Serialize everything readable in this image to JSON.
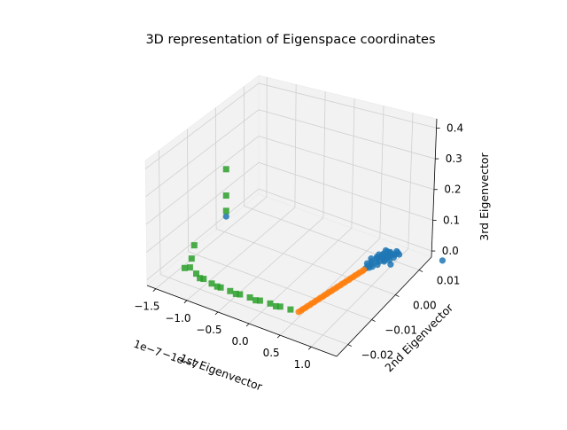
{
  "chart_data": {
    "type": "scatter",
    "title": "3D representation of Eigenspace coordinates",
    "xlabel": "1st Eigenvector",
    "ylabel": "2nd Eigenvector",
    "zlabel": "3rd Eigenvector",
    "x_offset_text": "1e−7",
    "x_overlap_text": "−1e−7",
    "x_ticks": [
      "−1.5",
      "−1.0",
      "−0.5",
      "0.0",
      "0.5",
      "1.0"
    ],
    "y_ticks": [
      "−0.02",
      "−0.01",
      "0.00",
      "0.01"
    ],
    "z_ticks": [
      "0.0",
      "0.1",
      "0.2",
      "0.3",
      "0.4"
    ],
    "xlim": [
      -1.75,
      1.25
    ],
    "ylim": [
      -0.025,
      0.017
    ],
    "zlim": [
      -0.02,
      0.43
    ],
    "grid": true,
    "colors": {
      "series1": "#1f77b4",
      "series2": "#ff7f0e",
      "series3": "#2ca02c",
      "pane": "#f2f2f2",
      "grid": "#d0d0d0"
    },
    "series": [
      {
        "color": "#1f77b4",
        "marker": "circle",
        "points": [
          [
            0.58,
            0.0135,
            0.0
          ],
          [
            0.45,
            0.0125,
            0.0
          ],
          [
            0.52,
            0.0125,
            0.0
          ],
          [
            0.62,
            0.013,
            0.002
          ],
          [
            0.5,
            0.012,
            0.004
          ],
          [
            0.57,
            0.0115,
            0.0
          ],
          [
            0.47,
            0.0112,
            0.0
          ],
          [
            0.54,
            0.0108,
            0.0
          ],
          [
            0.43,
            0.0104,
            0.0
          ],
          [
            0.6,
            0.0118,
            0.003
          ],
          [
            0.49,
            0.0097,
            0.0
          ],
          [
            0.56,
            0.0092,
            0.0
          ],
          [
            0.46,
            0.0088,
            0.0
          ],
          [
            0.53,
            0.0084,
            0.0
          ],
          [
            0.4,
            0.0082,
            0.0
          ],
          [
            0.59,
            0.01,
            0.005
          ],
          [
            0.51,
            0.0078,
            0.0
          ],
          [
            0.44,
            0.0074,
            0.0
          ],
          [
            0.55,
            0.007,
            0.0
          ],
          [
            0.48,
            0.0066,
            0.0
          ],
          [
            0.42,
            0.0062,
            0.0
          ],
          [
            0.52,
            0.0058,
            0.0
          ],
          [
            0.46,
            0.0055,
            0.0
          ],
          [
            0.5,
            0.0051,
            0.0
          ],
          [
            0.47,
            0.0045,
            0.0
          ],
          [
            0.61,
            0.0122,
            0.001
          ],
          [
            0.63,
            0.0112,
            0.0
          ],
          [
            0.57,
            0.0102,
            0.006
          ],
          [
            0.65,
            0.0128,
            0.0
          ],
          [
            0.53,
            0.0095,
            0.003
          ],
          [
            0.48,
            0.0105,
            0.002
          ],
          [
            0.58,
            0.0088,
            0.0
          ],
          [
            0.44,
            0.0094,
            0.0
          ],
          [
            0.62,
            0.0098,
            0.0
          ],
          [
            0.55,
            0.0118,
            0.004
          ],
          [
            1.2,
            0.016,
            0.0
          ],
          [
            0.8,
            0.006,
            0.03
          ],
          [
            -1.55,
            0.0,
            0.05
          ]
        ]
      },
      {
        "color": "#ff7f0e",
        "marker": "circle",
        "points": [
          [
            0.47,
            0.0038,
            0.0
          ],
          [
            0.47,
            0.0031,
            0.0
          ],
          [
            0.46,
            0.0024,
            0.0
          ],
          [
            0.46,
            0.0017,
            0.0
          ],
          [
            0.45,
            0.001,
            0.0
          ],
          [
            0.45,
            0.0003,
            0.0
          ],
          [
            0.44,
            -0.0004,
            0.0
          ],
          [
            0.44,
            -0.0011,
            0.0
          ],
          [
            0.43,
            -0.0018,
            0.0
          ],
          [
            0.43,
            -0.0025,
            0.0
          ],
          [
            0.42,
            -0.0032,
            0.0
          ],
          [
            0.42,
            -0.0039,
            0.0
          ],
          [
            0.41,
            -0.0046,
            0.0
          ],
          [
            0.41,
            -0.0053,
            0.0
          ],
          [
            0.4,
            -0.006,
            0.0
          ],
          [
            0.4,
            -0.0067,
            0.0
          ],
          [
            0.39,
            -0.0074,
            0.0
          ],
          [
            0.39,
            -0.0081,
            0.0
          ],
          [
            0.38,
            -0.0088,
            0.0
          ],
          [
            0.38,
            -0.0095,
            0.0
          ],
          [
            0.37,
            -0.0102,
            0.0
          ],
          [
            0.37,
            -0.0109,
            0.0
          ],
          [
            0.36,
            -0.0116,
            0.0
          ],
          [
            0.36,
            -0.0123,
            0.0
          ],
          [
            0.35,
            -0.013,
            0.0
          ],
          [
            0.35,
            -0.0137,
            0.0
          ],
          [
            0.34,
            -0.0144,
            0.0
          ],
          [
            0.34,
            -0.0151,
            0.0
          ],
          [
            0.33,
            -0.0158,
            0.0
          ],
          [
            0.33,
            -0.0165,
            0.0
          ],
          [
            0.32,
            -0.0172,
            0.0
          ]
        ]
      },
      {
        "color": "#2ca02c",
        "marker": "square",
        "points": [
          [
            -1.55,
            0.0,
            0.22
          ],
          [
            -1.55,
            0.0,
            0.125
          ],
          [
            -1.55,
            0.0,
            0.07
          ],
          [
            -1.55,
            -0.012,
            0.04
          ],
          [
            -1.55,
            -0.013,
            0.0
          ],
          [
            -1.45,
            -0.016,
            0.0
          ],
          [
            -1.3,
            -0.0172,
            0.0
          ],
          [
            -1.15,
            -0.018,
            0.0
          ],
          [
            -1.0,
            -0.0185,
            0.0
          ],
          [
            -0.85,
            -0.0187,
            0.0
          ],
          [
            -0.7,
            -0.0187,
            0.0
          ],
          [
            -0.55,
            -0.0186,
            0.0
          ],
          [
            -0.4,
            -0.0184,
            0.0
          ],
          [
            -0.25,
            -0.0182,
            0.0
          ],
          [
            -0.1,
            -0.0179,
            0.0
          ],
          [
            0.05,
            -0.0177,
            0.0
          ],
          [
            0.2,
            -0.0174,
            0.0
          ],
          [
            -1.5,
            -0.0168,
            0.0
          ],
          [
            -1.2,
            -0.0182,
            0.0
          ],
          [
            -0.9,
            -0.0188,
            0.0
          ],
          [
            -0.6,
            -0.0189,
            0.0
          ],
          [
            -0.3,
            -0.0186,
            0.0
          ],
          [
            0.0,
            -0.0181,
            0.0
          ]
        ]
      }
    ]
  }
}
